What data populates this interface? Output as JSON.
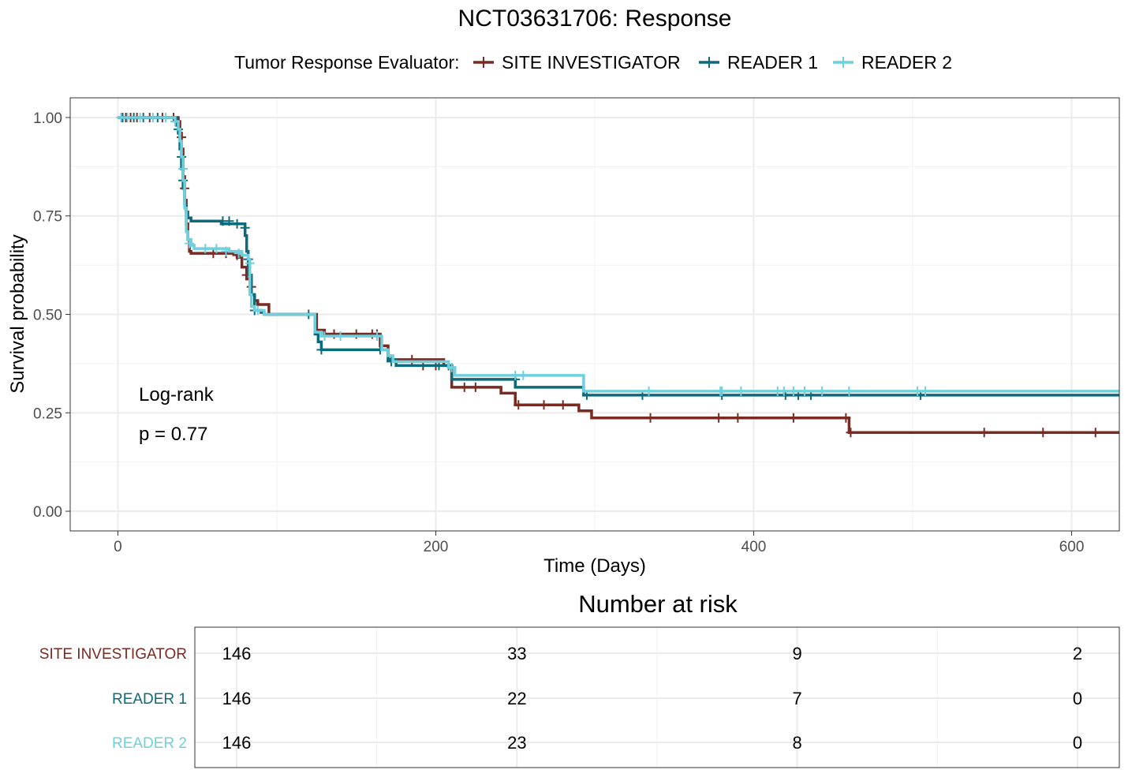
{
  "chart_data": [
    {
      "type": "line",
      "subtype": "kaplan-meier",
      "title": "NCT03631706: Response",
      "xlabel": "Time (Days)",
      "ylabel": "Survival probability",
      "xlim": [
        -30,
        630
      ],
      "ylim": [
        -0.05,
        1.05
      ],
      "x_ticks": [
        0,
        200,
        400,
        600
      ],
      "y_ticks": [
        0,
        0.25,
        0.5,
        0.75,
        1
      ],
      "y_tick_labels": [
        "0.00",
        "0.25",
        "0.50",
        "0.75",
        "1.00"
      ],
      "grid": true,
      "legend": {
        "title": "Tumor Response Evaluator:",
        "position": "top"
      },
      "annotation": {
        "line1": "Log-rank",
        "line2": "p = 0.77"
      },
      "series": [
        {
          "name": "SITE INVESTIGATOR",
          "color": "#7B2A22",
          "steps": [
            [
              0,
              1.0
            ],
            [
              38,
              0.99
            ],
            [
              39,
              0.96
            ],
            [
              40,
              0.92
            ],
            [
              41,
              0.85
            ],
            [
              42,
              0.79
            ],
            [
              43,
              0.73
            ],
            [
              44,
              0.69
            ],
            [
              45,
              0.66
            ],
            [
              46,
              0.655
            ],
            [
              75,
              0.645
            ],
            [
              78,
              0.62
            ],
            [
              81,
              0.59
            ],
            [
              84,
              0.55
            ],
            [
              86,
              0.535
            ],
            [
              88,
              0.525
            ],
            [
              95,
              0.5
            ],
            [
              125,
              0.46
            ],
            [
              130,
              0.45
            ],
            [
              165,
              0.42
            ],
            [
              170,
              0.385
            ],
            [
              205,
              0.37
            ],
            [
              210,
              0.315
            ],
            [
              241,
              0.3
            ],
            [
              250,
              0.27
            ],
            [
              290,
              0.255
            ],
            [
              298,
              0.237
            ],
            [
              460,
              0.2
            ],
            [
              620,
              0.2
            ]
          ],
          "censors": [
            [
              5,
              1.0
            ],
            [
              8,
              1.0
            ],
            [
              12,
              1.0
            ],
            [
              20,
              1.0
            ],
            [
              28,
              1.0
            ],
            [
              35,
              1.0
            ],
            [
              40,
              0.95
            ],
            [
              42,
              0.82
            ],
            [
              60,
              0.655
            ],
            [
              68,
              0.655
            ],
            [
              75,
              0.65
            ],
            [
              81,
              0.6
            ],
            [
              84,
              0.57
            ],
            [
              136,
              0.45
            ],
            [
              150,
              0.45
            ],
            [
              160,
              0.45
            ],
            [
              163,
              0.45
            ],
            [
              185,
              0.385
            ],
            [
              192,
              0.37
            ],
            [
              200,
              0.37
            ],
            [
              218,
              0.315
            ],
            [
              225,
              0.315
            ],
            [
              252,
              0.27
            ],
            [
              268,
              0.27
            ],
            [
              280,
              0.27
            ],
            [
              335,
              0.237
            ],
            [
              378,
              0.237
            ],
            [
              390,
              0.237
            ],
            [
              425,
              0.237
            ],
            [
              458,
              0.237
            ],
            [
              461,
              0.2
            ],
            [
              545,
              0.2
            ],
            [
              582,
              0.2
            ],
            [
              615,
              0.2
            ]
          ]
        },
        {
          "name": "READER 1",
          "color": "#0D6A7A",
          "steps": [
            [
              0,
              1.0
            ],
            [
              37,
              0.98
            ],
            [
              38,
              0.96
            ],
            [
              39,
              0.92
            ],
            [
              40,
              0.87
            ],
            [
              41,
              0.82
            ],
            [
              42,
              0.78
            ],
            [
              43,
              0.76
            ],
            [
              44,
              0.745
            ],
            [
              46,
              0.737
            ],
            [
              65,
              0.73
            ],
            [
              80,
              0.7
            ],
            [
              81,
              0.66
            ],
            [
              82,
              0.6
            ],
            [
              84,
              0.55
            ],
            [
              86,
              0.51
            ],
            [
              90,
              0.505
            ],
            [
              92,
              0.5
            ],
            [
              124,
              0.45
            ],
            [
              126,
              0.43
            ],
            [
              128,
              0.41
            ],
            [
              170,
              0.385
            ],
            [
              175,
              0.37
            ],
            [
              210,
              0.335
            ],
            [
              250,
              0.315
            ],
            [
              293,
              0.295
            ],
            [
              505,
              0.295
            ]
          ],
          "censors": [
            [
              3,
              1.0
            ],
            [
              10,
              1.0
            ],
            [
              16,
              1.0
            ],
            [
              25,
              1.0
            ],
            [
              38,
              0.97
            ],
            [
              40,
              0.9
            ],
            [
              41,
              0.84
            ],
            [
              66,
              0.737
            ],
            [
              70,
              0.737
            ],
            [
              75,
              0.73
            ],
            [
              80,
              0.72
            ],
            [
              82,
              0.64
            ],
            [
              86,
              0.51
            ],
            [
              120,
              0.5
            ],
            [
              128,
              0.41
            ],
            [
              165,
              0.41
            ],
            [
              172,
              0.38
            ],
            [
              202,
              0.37
            ],
            [
              208,
              0.37
            ],
            [
              250,
              0.335
            ],
            [
              295,
              0.295
            ],
            [
              330,
              0.295
            ],
            [
              380,
              0.295
            ],
            [
              420,
              0.295
            ],
            [
              428,
              0.295
            ],
            [
              436,
              0.295
            ],
            [
              505,
              0.295
            ]
          ]
        },
        {
          "name": "READER 2",
          "color": "#6DD0DC",
          "steps": [
            [
              0,
              1.0
            ],
            [
              36,
              0.99
            ],
            [
              38,
              0.97
            ],
            [
              39,
              0.94
            ],
            [
              40,
              0.9
            ],
            [
              41,
              0.84
            ],
            [
              42,
              0.77
            ],
            [
              43,
              0.71
            ],
            [
              44,
              0.69
            ],
            [
              46,
              0.675
            ],
            [
              48,
              0.667
            ],
            [
              70,
              0.66
            ],
            [
              78,
              0.65
            ],
            [
              82,
              0.64
            ],
            [
              83,
              0.55
            ],
            [
              84,
              0.52
            ],
            [
              86,
              0.51
            ],
            [
              92,
              0.5
            ],
            [
              124,
              0.455
            ],
            [
              128,
              0.445
            ],
            [
              166,
              0.41
            ],
            [
              170,
              0.395
            ],
            [
              173,
              0.38
            ],
            [
              208,
              0.365
            ],
            [
              212,
              0.345
            ],
            [
              293,
              0.305
            ],
            [
              505,
              0.305
            ]
          ],
          "censors": [
            [
              2,
              1.0
            ],
            [
              6,
              1.0
            ],
            [
              14,
              1.0
            ],
            [
              22,
              1.0
            ],
            [
              30,
              1.0
            ],
            [
              36,
              0.99
            ],
            [
              41,
              0.87
            ],
            [
              45,
              0.68
            ],
            [
              55,
              0.667
            ],
            [
              62,
              0.667
            ],
            [
              68,
              0.66
            ],
            [
              76,
              0.655
            ],
            [
              83,
              0.63
            ],
            [
              88,
              0.51
            ],
            [
              130,
              0.445
            ],
            [
              140,
              0.445
            ],
            [
              163,
              0.445
            ],
            [
              210,
              0.365
            ],
            [
              250,
              0.345
            ],
            [
              255,
              0.345
            ],
            [
              334,
              0.305
            ],
            [
              379,
              0.305
            ],
            [
              380,
              0.305
            ],
            [
              392,
              0.305
            ],
            [
              415,
              0.305
            ],
            [
              419,
              0.305
            ],
            [
              425,
              0.305
            ],
            [
              432,
              0.305
            ],
            [
              443,
              0.305
            ],
            [
              460,
              0.305
            ],
            [
              503,
              0.305
            ],
            [
              508,
              0.305
            ]
          ]
        }
      ]
    },
    {
      "type": "table",
      "title": "Number at risk",
      "columns_x": [
        0,
        200,
        400,
        600
      ],
      "rows": [
        {
          "name": "SITE INVESTIGATOR",
          "color": "#7B2A22",
          "values": [
            "146",
            "33",
            "9",
            "2"
          ]
        },
        {
          "name": "READER 1",
          "color": "#0D6A7A",
          "values": [
            "146",
            "22",
            "7",
            "0"
          ]
        },
        {
          "name": "READER 2",
          "color": "#6DD0DC",
          "values": [
            "146",
            "23",
            "8",
            "0"
          ]
        }
      ]
    }
  ]
}
